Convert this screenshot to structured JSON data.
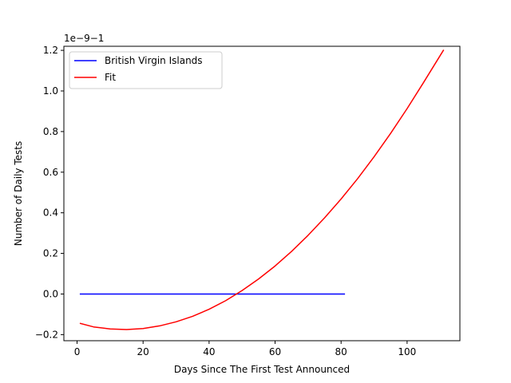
{
  "chart_data": {
    "type": "line",
    "xlabel": "Days Since The First Test Announced",
    "ylabel": "Number of Daily Tests",
    "y_offset_label": "1e−9−1",
    "xlim": [
      -4,
      116
    ],
    "ylim": [
      -0.23,
      1.22
    ],
    "xticks": [
      0,
      20,
      40,
      60,
      80,
      100
    ],
    "xtick_labels": [
      "0",
      "20",
      "40",
      "60",
      "80",
      "100"
    ],
    "yticks": [
      -0.2,
      0.0,
      0.2,
      0.4,
      0.6,
      0.8,
      1.0,
      1.2
    ],
    "ytick_labels": [
      "−0.2",
      "0.0",
      "0.2",
      "0.4",
      "0.6",
      "0.8",
      "1.0",
      "1.2"
    ],
    "grid": false,
    "legend_position": "upper-left",
    "series": [
      {
        "name": "British Virgin Islands",
        "color": "#0000ff",
        "x": [
          1,
          81
        ],
        "y": [
          0.0,
          0.0
        ]
      },
      {
        "name": "Fit",
        "color": "#ff0000",
        "x": [
          1,
          5,
          10,
          15,
          20,
          25,
          30,
          35,
          40,
          45,
          50,
          55,
          60,
          65,
          70,
          75,
          80,
          85,
          90,
          95,
          100,
          105,
          111
        ],
        "y": [
          -0.145,
          -0.162,
          -0.172,
          -0.175,
          -0.17,
          -0.157,
          -0.137,
          -0.11,
          -0.075,
          -0.033,
          0.017,
          0.074,
          0.138,
          0.21,
          0.289,
          0.375,
          0.468,
          0.568,
          0.676,
          0.791,
          0.913,
          1.042,
          1.2
        ]
      }
    ]
  }
}
